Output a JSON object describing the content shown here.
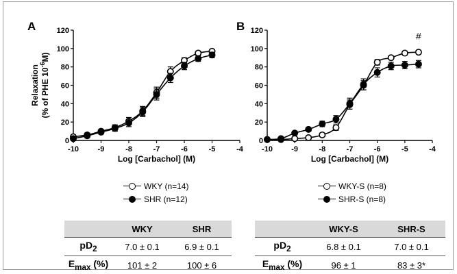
{
  "chart_data": [
    {
      "type": "line",
      "panel_label": "A",
      "xlabel": "Log [Carbachol] (M)",
      "ylabel_line1": "Relaxation",
      "ylabel_line2": "(% of PHE 10",
      "ylabel_sup": "-6",
      "ylabel_end": "M)",
      "xlim": [
        -10,
        -4
      ],
      "ylim": [
        0,
        120
      ],
      "xticks": [
        "-10",
        "-9",
        "-8",
        "-7",
        "-6",
        "-5",
        "-4"
      ],
      "yticks": [
        "0",
        "20",
        "40",
        "60",
        "80",
        "100",
        "120"
      ],
      "annotation": "",
      "x": [
        -10,
        -9.5,
        -9,
        -8.5,
        -8,
        -7.5,
        -7,
        -6.5,
        -6,
        -5.5,
        -5
      ],
      "series": [
        {
          "name": "WKY (n=14)",
          "marker": "open",
          "values": [
            4,
            6,
            10,
            14,
            21,
            32,
            52,
            75,
            87,
            95,
            97
          ],
          "errors": [
            2,
            2,
            2,
            3,
            4,
            5,
            6,
            5,
            3,
            2,
            2
          ]
        },
        {
          "name": "SHR (n=12)",
          "marker": "filled",
          "values": [
            2,
            5,
            9,
            13,
            19,
            31,
            50,
            68,
            81,
            89,
            93
          ],
          "errors": [
            2,
            2,
            2,
            3,
            4,
            5,
            6,
            5,
            4,
            3,
            3
          ]
        }
      ]
    },
    {
      "type": "line",
      "panel_label": "B",
      "xlabel": "Log [Carbachol] (M)",
      "ylabel_line1": "",
      "ylabel_line2": "",
      "ylabel_sup": "",
      "ylabel_end": "",
      "xlim": [
        -10,
        -4
      ],
      "ylim": [
        0,
        120
      ],
      "xticks": [
        "-10",
        "-9",
        "-8",
        "-7",
        "-6",
        "-5",
        "-4"
      ],
      "yticks": [
        "0",
        "20",
        "40",
        "60",
        "80",
        "100",
        "120"
      ],
      "annotation": "#",
      "annotation_x": -4.5,
      "annotation_y": 110,
      "x": [
        -10,
        -9.5,
        -9,
        -8.5,
        -8,
        -7.5,
        -7,
        -6.5,
        -6,
        -5.5,
        -5,
        -4.5
      ],
      "series": [
        {
          "name": "WKY-S (n=8)",
          "marker": "open",
          "values": [
            1,
            1,
            2,
            3,
            6,
            14,
            39,
            60,
            85,
            90,
            95,
            96
          ],
          "errors": [
            1,
            1,
            1,
            1,
            2,
            3,
            5,
            5,
            3,
            2,
            2,
            2
          ]
        },
        {
          "name": "SHR-S (n=8)",
          "marker": "filled",
          "values": [
            1,
            2,
            8,
            12,
            18,
            23,
            40,
            61,
            74,
            81,
            82,
            83
          ],
          "errors": [
            1,
            1,
            2,
            2,
            3,
            4,
            6,
            6,
            5,
            4,
            4,
            4
          ]
        }
      ]
    }
  ],
  "tables": [
    {
      "headers": [
        "",
        "WKY",
        "SHR"
      ],
      "rows": [
        {
          "label": "pD",
          "sub": "2",
          "suffix": "",
          "values": [
            "7.0 ± 0.1",
            "6.9 ± 0.1"
          ]
        },
        {
          "label": "E",
          "sub": "max",
          "suffix": " (%)",
          "values": [
            "101 ± 2",
            "100 ± 6"
          ]
        }
      ]
    },
    {
      "headers": [
        "",
        "WKY-S",
        "SHR-S"
      ],
      "rows": [
        {
          "label": "pD",
          "sub": "2",
          "suffix": "",
          "values": [
            "6.8 ± 0.1",
            "7.0 ± 0.1"
          ]
        },
        {
          "label": "E",
          "sub": "max",
          "suffix": " (%)",
          "values": [
            "96 ± 1",
            "83 ± 3*"
          ]
        }
      ]
    }
  ]
}
